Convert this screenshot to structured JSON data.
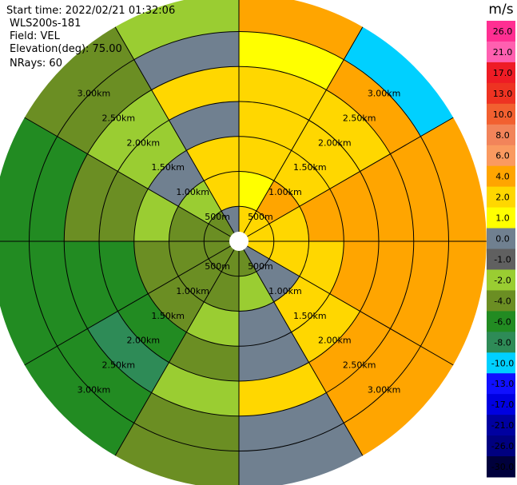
{
  "info": {
    "start_time": "Start time: 2022/02/21 01:32:06",
    "instrument": "WLS200s-181",
    "field": "Field: VEL",
    "elevation": "Elevation(deg): 75.00",
    "nrays": "NRays: 60"
  },
  "chart_data": {
    "type": "heatmap",
    "subtype": "polar-ppi",
    "field": "VEL",
    "range_rings_km": [
      0.5,
      1.0,
      1.5,
      2.0,
      2.5,
      3.0
    ],
    "ring_labels": [
      "500m",
      "1.00km",
      "1.50km",
      "2.00km",
      "2.50km",
      "3.00km"
    ],
    "max_range_km": 3.54,
    "azimuth_spokes_deg": [
      0,
      30,
      60,
      90,
      120,
      150,
      180,
      210,
      240,
      270,
      300,
      330
    ],
    "colorbar": {
      "unit": "m/s",
      "tick_labels": [
        "26.0",
        "21.0",
        "17.0",
        "13.0",
        "10.0",
        "8.0",
        "6.0",
        "4.0",
        "2.0",
        "1.0",
        "0.0",
        "-1.0",
        "-2.0",
        "-4.0",
        "-6.0",
        "-8.0",
        "-10.0",
        "-13.0",
        "-17.0",
        "-21.0",
        "-26.0",
        "-30.0"
      ],
      "boundaries": [
        30,
        26,
        21,
        17,
        13,
        10,
        8,
        6,
        4,
        2,
        1,
        0,
        -1,
        -2,
        -4,
        -6,
        -8,
        -10,
        -13,
        -17,
        -21,
        -26,
        -30
      ],
      "colors": [
        "#ff2f92",
        "#ff60b0",
        "#ee1c25",
        "#ee3322",
        "#f26030",
        "#f2845a",
        "#fa9a60",
        "#ffa500",
        "#ffd700",
        "#ffff00",
        "#708090",
        "#606060",
        "#9acd32",
        "#6b8e23",
        "#228b22",
        "#2e8b57",
        "#00d0ff",
        "#1010ff",
        "#0000e0",
        "#0000a0",
        "#000080",
        "#00003c"
      ]
    },
    "sectors": [
      {
        "az": [
          0,
          30
        ],
        "rings_km": [
          0.5,
          1.0,
          1.5,
          2.0,
          2.5,
          3.0,
          3.54
        ],
        "values": [
          3,
          1.5,
          3,
          3,
          3,
          1.5,
          5
        ]
      },
      {
        "az": [
          30,
          60
        ],
        "rings_km": [
          0.5,
          1.0,
          1.5,
          2.0,
          2.5,
          3.0,
          3.54
        ],
        "values": [
          3,
          5,
          3,
          3,
          3,
          5,
          -8
        ]
      },
      {
        "az": [
          60,
          90
        ],
        "rings_km": [
          0.5,
          1.0,
          1.5,
          2.0,
          2.5,
          3.0,
          3.54
        ],
        "values": [
          3,
          3,
          5,
          5,
          5,
          5,
          5
        ]
      },
      {
        "az": [
          90,
          120
        ],
        "rings_km": [
          0.5,
          1.0,
          1.5,
          2.0,
          2.5,
          3.0,
          3.54
        ],
        "values": [
          3,
          3,
          3,
          5,
          5,
          5,
          5
        ]
      },
      {
        "az": [
          120,
          150
        ],
        "rings_km": [
          0.5,
          1.0,
          1.5,
          2.0,
          2.5,
          3.0,
          3.54
        ],
        "values": [
          0.5,
          0.5,
          3,
          3,
          5,
          5,
          5
        ]
      },
      {
        "az": [
          150,
          180
        ],
        "rings_km": [
          0.5,
          1.0,
          1.5,
          2.0,
          2.5,
          3.0,
          3.54
        ],
        "values": [
          -3,
          -1.5,
          0.5,
          0.5,
          3,
          0.5,
          0.5
        ]
      },
      {
        "az": [
          180,
          210
        ],
        "rings_km": [
          0.5,
          1.0,
          1.5,
          2.0,
          2.5,
          3.0,
          3.54
        ],
        "values": [
          -3,
          -3,
          -1.5,
          -3,
          -1.5,
          -3,
          -3
        ]
      },
      {
        "az": [
          210,
          240
        ],
        "rings_km": [
          0.5,
          1.0,
          1.5,
          2.0,
          2.5,
          3.0,
          3.54
        ],
        "values": [
          -3,
          -3,
          -3,
          -5,
          -7,
          -5,
          -5
        ]
      },
      {
        "az": [
          240,
          270
        ],
        "rings_km": [
          0.5,
          1.0,
          1.5,
          2.0,
          2.5,
          3.0,
          3.54
        ],
        "values": [
          -3,
          -3,
          -3,
          -5,
          -5,
          -5,
          -5
        ]
      },
      {
        "az": [
          270,
          300
        ],
        "rings_km": [
          0.5,
          1.0,
          1.5,
          2.0,
          2.5,
          3.0,
          3.54
        ],
        "values": [
          -3,
          -3,
          -1.5,
          -3,
          -3,
          -5,
          -5
        ]
      },
      {
        "az": [
          300,
          330
        ],
        "rings_km": [
          0.5,
          1.0,
          1.5,
          2.0,
          2.5,
          3.0,
          3.54
        ],
        "values": [
          -3,
          -1.5,
          0.5,
          -1.5,
          -1.5,
          -3,
          -3
        ]
      },
      {
        "az": [
          330,
          360
        ],
        "rings_km": [
          0.5,
          1.0,
          1.5,
          2.0,
          2.5,
          3.0,
          3.54
        ],
        "values": [
          0.5,
          3,
          3,
          0.5,
          3,
          0.5,
          -1.5
        ]
      }
    ],
    "grid": true
  }
}
